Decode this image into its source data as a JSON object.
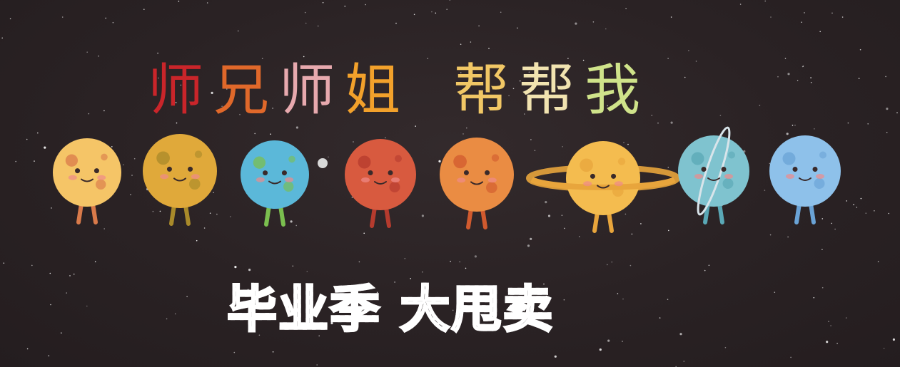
{
  "banner": {
    "title_chars": [
      {
        "char": "师",
        "color": "#c9252a"
      },
      {
        "char": "兄",
        "color": "#e0682a"
      },
      {
        "char": "师",
        "color": "#e7a9ae"
      },
      {
        "char": "姐",
        "color": "#f2a12b"
      },
      {
        "char": "帮",
        "color": "#f1c765"
      },
      {
        "char": "帮",
        "color": "#f1e3b0"
      },
      {
        "char": "我",
        "color": "#cfe38a"
      }
    ],
    "subtitle": "毕业季 大甩卖",
    "planets": [
      {
        "name": "mercury-planet-character",
        "body": "#f5c567",
        "spots": "#d97a4a"
      },
      {
        "name": "venus-planet-character",
        "body": "#e0a93a",
        "spots": "#a98a2a"
      },
      {
        "name": "earth-planet-character",
        "body": "#5bb8d9",
        "spots": "#7bbf4f"
      },
      {
        "name": "mars-planet-character",
        "body": "#d85a3f",
        "spots": "#b53b2e"
      },
      {
        "name": "jupiter-planet-character",
        "body": "#ea8c43",
        "spots": "#d15a2e"
      },
      {
        "name": "saturn-planet-character",
        "body": "#f4bc4f",
        "spots": "#e8a53c"
      },
      {
        "name": "uranus-planet-character",
        "body": "#7fc3cf",
        "spots": "#5aa8b6"
      },
      {
        "name": "neptune-planet-character",
        "body": "#8ec1ea",
        "spots": "#6aa3d6"
      }
    ],
    "moon_color": "#d8d8d8",
    "background_color": "#2a2224"
  }
}
